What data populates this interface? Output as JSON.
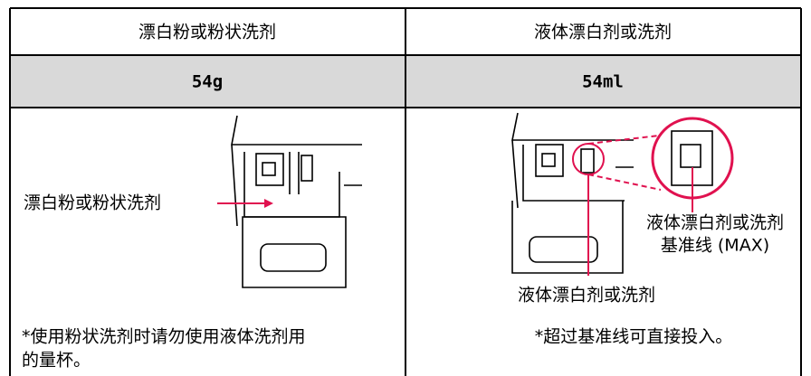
{
  "table": {
    "header": [
      "漂白粉或粉状洗剂",
      "液体漂白剂或洗剂"
    ],
    "rows": [
      [
        "54g",
        "54ml"
      ]
    ]
  },
  "illustrations": {
    "left": {
      "label": "漂白粉或粉状洗剂",
      "note": [
        "*使用粉状洗剂时请勿使用液体洗剂用",
        "的量杯。"
      ]
    },
    "right": {
      "callout": [
        "液体漂白剂或洗剂",
        "基准线 (MAX)"
      ],
      "label": "液体漂白剂或洗剂",
      "note": [
        "*超过基准线可直接投入。"
      ]
    }
  }
}
